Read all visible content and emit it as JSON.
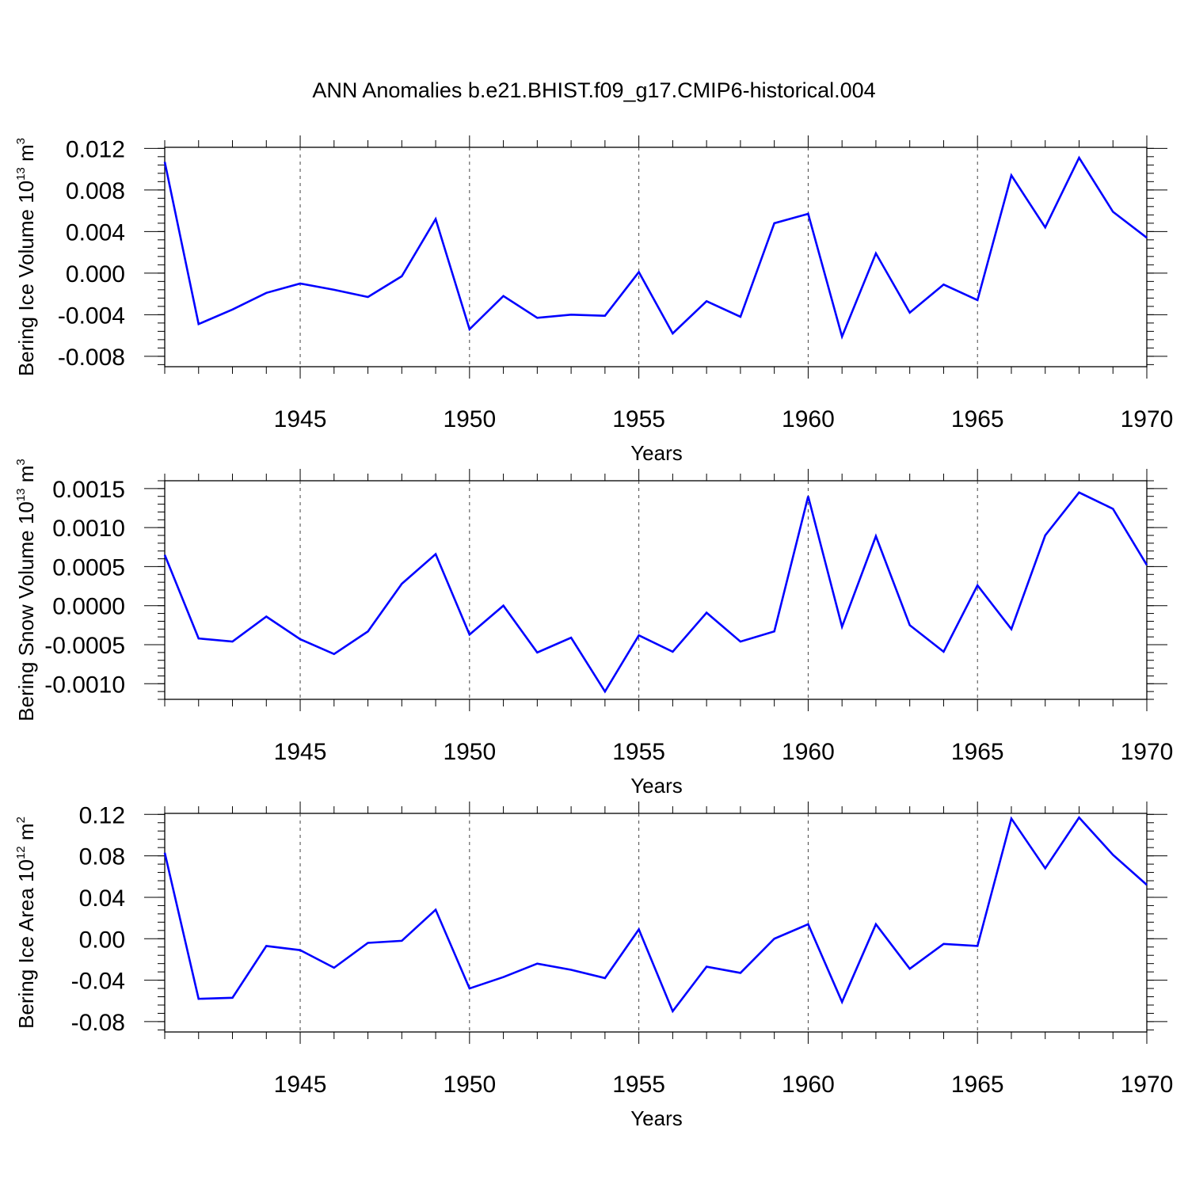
{
  "title": "ANN Anomalies b.e21.BHIST.f09_g17.CMIP6-historical.004",
  "line_color": "#0000ff",
  "chart_data": [
    {
      "type": "line",
      "xlabel": "Years",
      "ylabel": {
        "text": "Bering Ice Volume 10",
        "exp": "13",
        "unit": " m",
        "unit_exp": "3"
      },
      "xlim": [
        1941,
        1970
      ],
      "ylim": [
        -0.009,
        0.0121
      ],
      "xticks": [
        1945,
        1950,
        1955,
        1960,
        1965,
        1970
      ],
      "yticks": [
        -0.008,
        -0.004,
        0.0,
        0.004,
        0.008,
        0.012
      ],
      "ytick_labels": [
        "-0.008",
        "-0.004",
        "0.000",
        "0.004",
        "0.008",
        "0.012"
      ],
      "yminor_step": 0.0008,
      "series": [
        {
          "name": "Bering Ice Volume",
          "x": [
            1941,
            1942,
            1943,
            1944,
            1945,
            1946,
            1947,
            1948,
            1949,
            1950,
            1951,
            1952,
            1953,
            1954,
            1955,
            1956,
            1957,
            1958,
            1959,
            1960,
            1961,
            1962,
            1963,
            1964,
            1965,
            1966,
            1967,
            1968,
            1969,
            1970
          ],
          "values": [
            0.0107,
            -0.0049,
            -0.0035,
            -0.0019,
            -0.001,
            -0.0016,
            -0.0023,
            -0.0003,
            0.0052,
            -0.0054,
            -0.0022,
            -0.0043,
            -0.004,
            -0.0041,
            0.0001,
            -0.0058,
            -0.0027,
            -0.0042,
            0.0048,
            0.0057,
            -0.0061,
            0.0019,
            -0.0038,
            -0.0011,
            -0.0026,
            0.0094,
            0.0044,
            0.0111,
            0.0059,
            0.0034
          ]
        }
      ]
    },
    {
      "type": "line",
      "xlabel": "Years",
      "ylabel": {
        "text": "Bering Snow Volume 10",
        "exp": "13",
        "unit": " m",
        "unit_exp": "3"
      },
      "xlim": [
        1941,
        1970
      ],
      "ylim": [
        -0.0012,
        0.0016
      ],
      "xticks": [
        1945,
        1950,
        1955,
        1960,
        1965,
        1970
      ],
      "yticks": [
        -0.001,
        -0.0005,
        0.0,
        0.0005,
        0.001,
        0.0015
      ],
      "ytick_labels": [
        "-0.0010",
        "-0.0005",
        "0.0000",
        "0.0005",
        "0.0010",
        "0.0015"
      ],
      "yminor_step": 0.0001,
      "series": [
        {
          "name": "Bering Snow Volume",
          "x": [
            1941,
            1942,
            1943,
            1944,
            1945,
            1946,
            1947,
            1948,
            1949,
            1950,
            1951,
            1952,
            1953,
            1954,
            1955,
            1956,
            1957,
            1958,
            1959,
            1960,
            1961,
            1962,
            1963,
            1964,
            1965,
            1966,
            1967,
            1968,
            1969,
            1970
          ],
          "values": [
            0.00065,
            -0.00042,
            -0.00046,
            -0.00014,
            -0.00043,
            -0.00062,
            -0.00033,
            0.00028,
            0.00066,
            -0.00037,
            0.0,
            -0.0006,
            -0.00041,
            -0.0011,
            -0.00038,
            -0.00059,
            -9e-05,
            -0.00046,
            -0.00033,
            0.0014,
            -0.00027,
            0.00089,
            -0.00025,
            -0.00059,
            0.00026,
            -0.0003,
            0.0009,
            0.00145,
            0.00124,
            0.00052
          ]
        }
      ]
    },
    {
      "type": "line",
      "xlabel": "Years",
      "ylabel": {
        "text": "Bering Ice Area 10",
        "exp": "12",
        "unit": " m",
        "unit_exp": "2"
      },
      "xlim": [
        1941,
        1970
      ],
      "ylim": [
        -0.09,
        0.121
      ],
      "xticks": [
        1945,
        1950,
        1955,
        1960,
        1965,
        1970
      ],
      "yticks": [
        -0.08,
        -0.04,
        0.0,
        0.04,
        0.08,
        0.12
      ],
      "ytick_labels": [
        "-0.08",
        "-0.04",
        "0.00",
        "0.04",
        "0.08",
        "0.12"
      ],
      "yminor_step": 0.008,
      "series": [
        {
          "name": "Bering Ice Area",
          "x": [
            1941,
            1942,
            1943,
            1944,
            1945,
            1946,
            1947,
            1948,
            1949,
            1950,
            1951,
            1952,
            1953,
            1954,
            1955,
            1956,
            1957,
            1958,
            1959,
            1960,
            1961,
            1962,
            1963,
            1964,
            1965,
            1966,
            1967,
            1968,
            1969,
            1970
          ],
          "values": [
            0.083,
            -0.058,
            -0.057,
            -0.007,
            -0.011,
            -0.028,
            -0.004,
            -0.002,
            0.028,
            -0.048,
            -0.037,
            -0.024,
            -0.03,
            -0.038,
            0.009,
            -0.07,
            -0.027,
            -0.033,
            0.0,
            0.014,
            -0.061,
            0.014,
            -0.029,
            -0.005,
            -0.007,
            0.116,
            0.068,
            0.117,
            0.081,
            0.052
          ]
        }
      ]
    }
  ]
}
